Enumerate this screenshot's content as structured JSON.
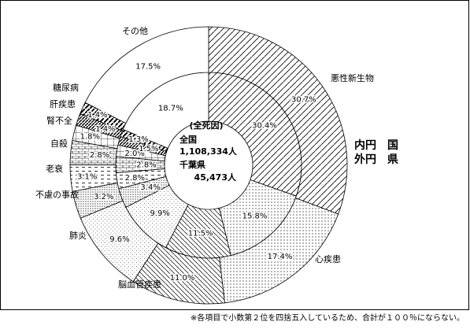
{
  "chart_data": {
    "type": "donut",
    "categories": [
      "悪性新生物",
      "心疾患",
      "脳血管疾患",
      "肺炎",
      "不慮の事故",
      "老衰",
      "自殺",
      "腎不全",
      "肝疾患",
      "糖尿病",
      "その他"
    ],
    "series": [
      {
        "values": [
          30.4,
          15.8,
          11.5,
          9.9,
          3.4,
          2.8,
          2.8,
          2.0,
          1.5,
          1.3,
          18.7
        ],
        "value_labels": [
          "30.4%",
          "15.8%",
          "11.5%",
          "9.9%",
          "3.4%",
          "2.8%",
          "2.8%",
          "2.0%",
          "1.5%",
          "1.3%",
          "18.7%"
        ]
      },
      {
        "values": [
          30.7,
          17.4,
          11.0,
          9.6,
          3.2,
          3.1,
          2.8,
          1.8,
          1.4,
          1.4,
          17.5
        ],
        "value_labels": [
          "30.7%",
          "17.4%",
          "11.0%",
          "9.6%",
          "3.2%",
          "3.1%",
          "2.8%",
          "1.8%",
          "1.4%",
          "1.4%",
          "17.5%"
        ]
      }
    ],
    "center_text": [
      "(全死因)",
      "全国",
      "1,108,334人",
      "千葉県",
      "45,473人"
    ],
    "legend": [
      "内円　国",
      "外円　県"
    ],
    "footnote": "※各項目で小数第２位を四捨五入しているため、合計が１００％にならない。"
  }
}
